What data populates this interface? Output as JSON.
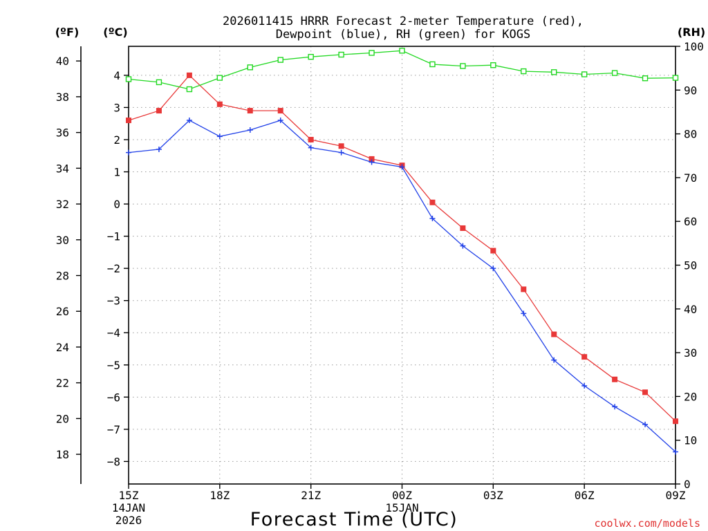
{
  "chart_data": {
    "type": "line",
    "title_line1": "2026011415 HRRR Forecast 2-meter Temperature (red),",
    "title_line2": "Dewpoint (blue), RH (green) for KOGS",
    "xlabel": "Forecast Time (UTC)",
    "left_unit_f": "(ºF)",
    "left_unit_c": "(ºC)",
    "right_unit": "(RH)",
    "credit": "coolwx.com/models",
    "x_hours": [
      0,
      1,
      2,
      3,
      4,
      5,
      6,
      7,
      8,
      9,
      10,
      11,
      12,
      13,
      14,
      15,
      16,
      17,
      18
    ],
    "x_ticks": [
      {
        "hour": 0,
        "label": "15Z",
        "sub1": "14JAN",
        "sub2": "2026"
      },
      {
        "hour": 3,
        "label": "18Z",
        "sub1": "",
        "sub2": ""
      },
      {
        "hour": 6,
        "label": "21Z",
        "sub1": "",
        "sub2": ""
      },
      {
        "hour": 9,
        "label": "00Z",
        "sub1": "15JAN",
        "sub2": ""
      },
      {
        "hour": 12,
        "label": "03Z",
        "sub1": "",
        "sub2": ""
      },
      {
        "hour": 15,
        "label": "06Z",
        "sub1": "",
        "sub2": ""
      },
      {
        "hour": 18,
        "label": "09Z",
        "sub1": "",
        "sub2": ""
      }
    ],
    "ylim_c": [
      -8.7,
      4.9
    ],
    "ylim_rh": [
      0,
      100
    ],
    "c_ticks": [
      "4",
      "3",
      "2",
      "1",
      "0",
      "−1",
      "−2",
      "−3",
      "−4",
      "−5",
      "−6",
      "−7",
      "−8"
    ],
    "c_tick_values": [
      4,
      3,
      2,
      1,
      0,
      -1,
      -2,
      -3,
      -4,
      -5,
      -6,
      -7,
      -8
    ],
    "f_ticks": [
      "40",
      "38",
      "36",
      "34",
      "32",
      "30",
      "28",
      "26",
      "24",
      "22",
      "20",
      "18"
    ],
    "f_tick_values": [
      40,
      38,
      36,
      34,
      32,
      30,
      28,
      26,
      24,
      22,
      20,
      18
    ],
    "rh_ticks": [
      "100",
      "90",
      "80",
      "70",
      "60",
      "50",
      "40",
      "30",
      "20",
      "10",
      "0"
    ],
    "rh_tick_values": [
      100,
      90,
      80,
      70,
      60,
      50,
      40,
      30,
      20,
      10,
      0
    ],
    "series": [
      {
        "name": "2-meter Temperature",
        "axis": "C",
        "color": "#e83838",
        "marker": "filled-square",
        "values": [
          2.6,
          2.9,
          4.0,
          3.1,
          2.9,
          2.9,
          2.0,
          1.8,
          1.4,
          1.2,
          0.05,
          -0.75,
          -1.45,
          -2.65,
          -4.05,
          -4.75,
          -5.45,
          -5.85,
          -6.75
        ]
      },
      {
        "name": "Dewpoint",
        "axis": "C",
        "color": "#2040e8",
        "marker": "plus",
        "values": [
          1.6,
          1.7,
          2.6,
          2.1,
          2.3,
          2.6,
          1.75,
          1.6,
          1.3,
          1.15,
          -0.45,
          -1.3,
          -2.0,
          -3.4,
          -4.85,
          -5.65,
          -6.3,
          -6.85,
          -7.7
        ]
      },
      {
        "name": "RH",
        "axis": "RH",
        "color": "#20d820",
        "marker": "open-square",
        "values": [
          92.5,
          91.8,
          90.2,
          92.8,
          95.2,
          96.9,
          97.6,
          98.1,
          98.5,
          99.0,
          95.9,
          95.5,
          95.7,
          94.3,
          94.1,
          93.6,
          93.9,
          92.7,
          92.8
        ]
      }
    ]
  }
}
